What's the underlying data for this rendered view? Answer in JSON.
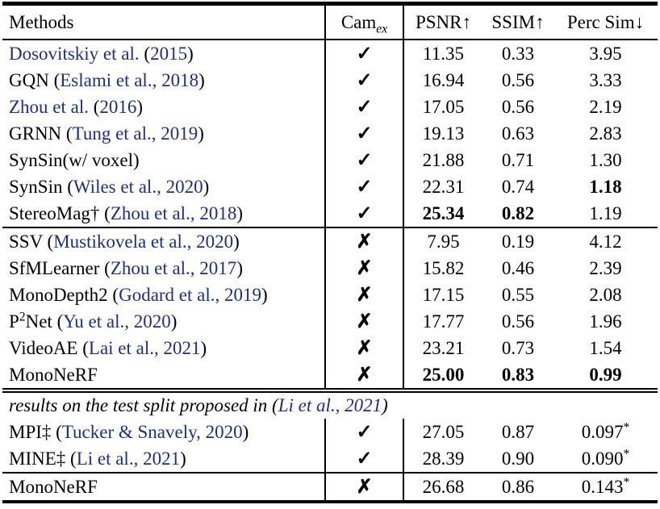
{
  "table": {
    "header": {
      "methods": "Methods",
      "cam_main": "Cam",
      "cam_sub": "ex",
      "psnr": "PSNR↑",
      "ssim": "SSIM↑",
      "perc": "Perc Sim↓"
    },
    "marks": {
      "check": "✓",
      "cross": "✗"
    },
    "cite_color": "#1e2f80",
    "groups": [
      {
        "divider": "none",
        "rows": [
          {
            "method": [
              {
                "t": "Dosovitskiy et al.",
                "blue": true
              },
              {
                "t": " ("
              },
              {
                "t": "2015",
                "blue": true
              },
              {
                "t": ")"
              }
            ],
            "cam": "check",
            "vals": [
              {
                "v": "11.35"
              },
              {
                "v": "0.33"
              },
              {
                "v": "3.95"
              }
            ]
          },
          {
            "method": [
              {
                "t": "GQN ("
              },
              {
                "t": "Eslami et al., 2018",
                "blue": true
              },
              {
                "t": ")"
              }
            ],
            "cam": "check",
            "vals": [
              {
                "v": "16.94"
              },
              {
                "v": "0.56"
              },
              {
                "v": "3.33"
              }
            ]
          },
          {
            "method": [
              {
                "t": "Zhou et al.",
                "blue": true
              },
              {
                "t": " ("
              },
              {
                "t": "2016",
                "blue": true
              },
              {
                "t": ")"
              }
            ],
            "cam": "check",
            "vals": [
              {
                "v": "17.05"
              },
              {
                "v": "0.56"
              },
              {
                "v": "2.19"
              }
            ]
          },
          {
            "method": [
              {
                "t": "GRNN ("
              },
              {
                "t": "Tung et al., 2019",
                "blue": true
              },
              {
                "t": ")"
              }
            ],
            "cam": "check",
            "vals": [
              {
                "v": "19.13"
              },
              {
                "v": "0.63"
              },
              {
                "v": "2.83"
              }
            ]
          },
          {
            "method": [
              {
                "t": "SynSin(w/ voxel)"
              }
            ],
            "cam": "check",
            "vals": [
              {
                "v": "21.88"
              },
              {
                "v": "0.71"
              },
              {
                "v": "1.30"
              }
            ]
          },
          {
            "method": [
              {
                "t": "SynSin ("
              },
              {
                "t": "Wiles et al., 2020",
                "blue": true
              },
              {
                "t": ")"
              }
            ],
            "cam": "check",
            "vals": [
              {
                "v": "22.31"
              },
              {
                "v": "0.74"
              },
              {
                "v": "1.18",
                "b": true
              }
            ]
          },
          {
            "method": [
              {
                "t": "StereoMag† ("
              },
              {
                "t": "Zhou et al., 2018",
                "blue": true
              },
              {
                "t": ")"
              }
            ],
            "cam": "check",
            "vals": [
              {
                "v": "25.34",
                "b": true
              },
              {
                "v": "0.82",
                "b": true
              },
              {
                "v": "1.19"
              }
            ]
          }
        ]
      },
      {
        "divider": "single",
        "rows": [
          {
            "method": [
              {
                "t": "SSV ("
              },
              {
                "t": "Mustikovela et al., 2020",
                "blue": true
              },
              {
                "t": ")"
              }
            ],
            "cam": "cross",
            "vals": [
              {
                "v": "7.95"
              },
              {
                "v": "0.19"
              },
              {
                "v": "4.12"
              }
            ]
          },
          {
            "method": [
              {
                "t": "SfMLearner ("
              },
              {
                "t": "Zhou et al., 2017",
                "blue": true
              },
              {
                "t": ")"
              }
            ],
            "cam": "cross",
            "vals": [
              {
                "v": "15.82"
              },
              {
                "v": "0.46"
              },
              {
                "v": "2.39"
              }
            ]
          },
          {
            "method": [
              {
                "t": "MonoDepth2 ("
              },
              {
                "t": "Godard et al., 2019",
                "blue": true
              },
              {
                "t": ")"
              }
            ],
            "cam": "cross",
            "vals": [
              {
                "v": "17.15"
              },
              {
                "v": "0.55"
              },
              {
                "v": "2.08"
              }
            ]
          },
          {
            "method": [
              {
                "t": "P"
              },
              {
                "t": "2",
                "sup": true
              },
              {
                "t": "Net ("
              },
              {
                "t": "Yu et al., 2020",
                "blue": true
              },
              {
                "t": ")"
              }
            ],
            "cam": "cross",
            "vals": [
              {
                "v": "17.77"
              },
              {
                "v": "0.56"
              },
              {
                "v": "1.96"
              }
            ]
          },
          {
            "method": [
              {
                "t": "VideoAE ("
              },
              {
                "t": "Lai et al., 2021",
                "blue": true
              },
              {
                "t": ")"
              }
            ],
            "cam": "cross",
            "vals": [
              {
                "v": "23.21"
              },
              {
                "v": "0.73"
              },
              {
                "v": "1.54"
              }
            ]
          },
          {
            "method": [
              {
                "t": "MonoNeRF"
              }
            ],
            "cam": "cross",
            "vals": [
              {
                "v": "25.00",
                "b": true
              },
              {
                "v": "0.83",
                "b": true
              },
              {
                "v": "0.99",
                "b": true
              }
            ]
          }
        ]
      },
      {
        "divider": "double",
        "note": [
          {
            "t": "results on the test split proposed in ("
          },
          {
            "t": "Li et al., 2021",
            "blue": true
          },
          {
            "t": ")"
          }
        ],
        "rows": [
          {
            "method": [
              {
                "t": "MPI‡ ("
              },
              {
                "t": "Tucker & Snavely, 2020",
                "blue": true
              },
              {
                "t": ")"
              }
            ],
            "cam": "check",
            "vals": [
              {
                "v": "27.05"
              },
              {
                "v": "0.87"
              },
              {
                "v": "0.097",
                "sup": "*"
              }
            ]
          },
          {
            "method": [
              {
                "t": "MINE‡ ("
              },
              {
                "t": "Li et al., 2021",
                "blue": true
              },
              {
                "t": ")"
              }
            ],
            "cam": "check",
            "vals": [
              {
                "v": "28.39"
              },
              {
                "v": "0.90"
              },
              {
                "v": "0.090",
                "sup": "*"
              }
            ]
          }
        ]
      },
      {
        "divider": "single",
        "rows": [
          {
            "method": [
              {
                "t": "MonoNeRF"
              }
            ],
            "cam": "cross",
            "vals": [
              {
                "v": "26.68"
              },
              {
                "v": "0.86"
              },
              {
                "v": "0.143",
                "sup": "*"
              }
            ]
          }
        ]
      }
    ]
  }
}
